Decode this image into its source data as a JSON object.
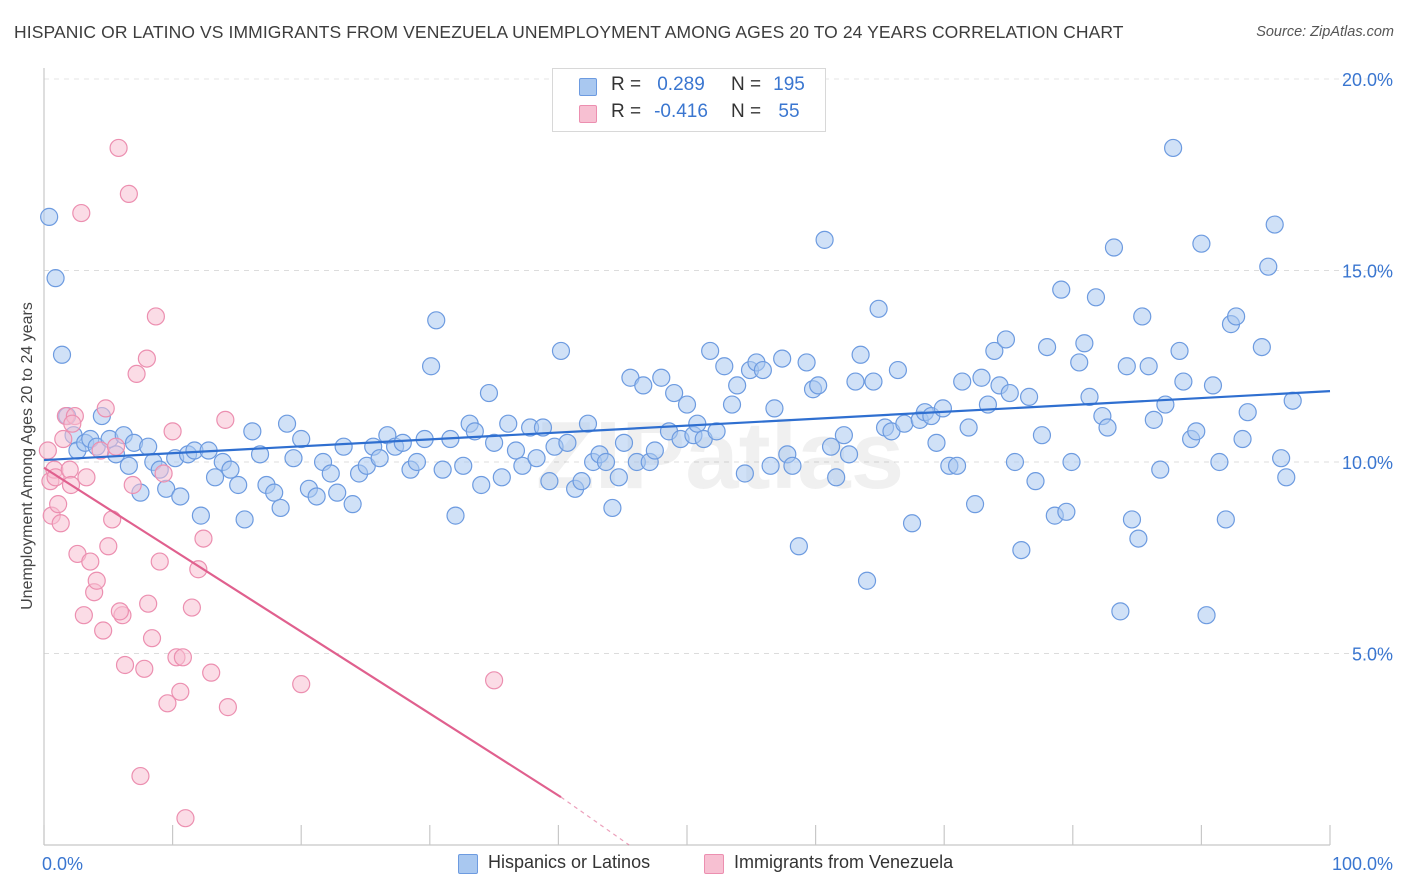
{
  "title": "HISPANIC OR LATINO VS IMMIGRANTS FROM VENEZUELA UNEMPLOYMENT AMONG AGES 20 TO 24 YEARS CORRELATION CHART",
  "source": "Source: ZipAtlas.com",
  "watermark": "ZIPatlas",
  "legend": {
    "rows": [
      {
        "r_label": "R =",
        "r_value": "0.289",
        "n_label": "N =",
        "n_value": "195",
        "color": "#a9c8f0",
        "edge": "#6d9be0"
      },
      {
        "r_label": "R =",
        "r_value": "-0.416",
        "n_label": "N =",
        "n_value": "55",
        "color": "#f7c0d2",
        "edge": "#ec8fb0"
      }
    ]
  },
  "bottom_legend": [
    {
      "label": "Hispanics or Latinos",
      "color": "#a9c8f0",
      "edge": "#6d9be0"
    },
    {
      "label": "Immigrants from Venezuela",
      "color": "#f7c0d2",
      "edge": "#ec8fb0"
    }
  ],
  "chart_data": {
    "type": "scatter",
    "title": "HISPANIC OR LATINO VS IMMIGRANTS FROM VENEZUELA UNEMPLOYMENT AMONG AGES 20 TO 24 YEARS CORRELATION CHART",
    "xlabel": "",
    "ylabel": "Unemployment Among Ages 20 to 24 years",
    "xlim": [
      0,
      100
    ],
    "ylim": [
      0,
      20
    ],
    "x_tick_labels": [
      "0.0%",
      "100.0%"
    ],
    "y_ticks": [
      5,
      10,
      15,
      20
    ],
    "y_tick_labels": [
      "5.0%",
      "10.0%",
      "15.0%",
      "20.0%"
    ],
    "grid": "horizontal-dashed",
    "colors": {
      "blue_line": "#2f6fd0",
      "pink_line": "#e0608e",
      "tick_label": "#3a76d0"
    },
    "series": [
      {
        "name": "Hispanics or Latinos",
        "fill": "#a9c8f0",
        "edge": "#6d9be0",
        "trend": {
          "x": [
            0,
            100
          ],
          "y": [
            10.05,
            11.85
          ]
        },
        "points": [
          [
            0.4,
            16.4
          ],
          [
            0.9,
            14.8
          ],
          [
            1.4,
            12.8
          ],
          [
            1.8,
            11.2
          ],
          [
            2.3,
            10.7
          ],
          [
            2.6,
            10.3
          ],
          [
            3.2,
            10.5
          ],
          [
            3.6,
            10.6
          ],
          [
            4.1,
            10.4
          ],
          [
            4.5,
            11.2
          ],
          [
            5.1,
            10.6
          ],
          [
            5.6,
            10.2
          ],
          [
            6.2,
            10.7
          ],
          [
            6.6,
            9.9
          ],
          [
            7.0,
            10.5
          ],
          [
            7.5,
            9.2
          ],
          [
            8.1,
            10.4
          ],
          [
            8.5,
            10.0
          ],
          [
            9.0,
            9.8
          ],
          [
            9.5,
            9.3
          ],
          [
            10.2,
            10.1
          ],
          [
            10.6,
            9.1
          ],
          [
            11.2,
            10.2
          ],
          [
            11.7,
            10.3
          ],
          [
            12.2,
            8.6
          ],
          [
            12.8,
            10.3
          ],
          [
            13.3,
            9.6
          ],
          [
            13.9,
            10.0
          ],
          [
            14.5,
            9.8
          ],
          [
            15.1,
            9.4
          ],
          [
            15.6,
            8.5
          ],
          [
            16.2,
            10.8
          ],
          [
            16.8,
            10.2
          ],
          [
            17.3,
            9.4
          ],
          [
            17.9,
            9.2
          ],
          [
            18.4,
            8.8
          ],
          [
            18.9,
            11.0
          ],
          [
            19.4,
            10.1
          ],
          [
            20.0,
            10.6
          ],
          [
            20.6,
            9.3
          ],
          [
            21.2,
            9.1
          ],
          [
            21.7,
            10.0
          ],
          [
            22.3,
            9.7
          ],
          [
            22.8,
            9.2
          ],
          [
            23.3,
            10.4
          ],
          [
            24.0,
            8.9
          ],
          [
            24.5,
            9.7
          ],
          [
            25.1,
            9.9
          ],
          [
            25.6,
            10.4
          ],
          [
            26.1,
            10.1
          ],
          [
            26.7,
            10.7
          ],
          [
            27.3,
            10.4
          ],
          [
            27.9,
            10.5
          ],
          [
            28.5,
            9.8
          ],
          [
            29.0,
            10.0
          ],
          [
            29.6,
            10.6
          ],
          [
            30.1,
            12.5
          ],
          [
            30.5,
            13.7
          ],
          [
            31.0,
            9.8
          ],
          [
            31.6,
            10.6
          ],
          [
            32.0,
            8.6
          ],
          [
            32.6,
            9.9
          ],
          [
            33.1,
            11.0
          ],
          [
            33.5,
            10.8
          ],
          [
            34.0,
            9.4
          ],
          [
            34.6,
            11.8
          ],
          [
            35.0,
            10.5
          ],
          [
            35.6,
            9.6
          ],
          [
            36.1,
            11.0
          ],
          [
            36.7,
            10.3
          ],
          [
            37.2,
            9.9
          ],
          [
            37.8,
            10.9
          ],
          [
            38.3,
            10.1
          ],
          [
            38.8,
            10.9
          ],
          [
            39.3,
            9.5
          ],
          [
            39.7,
            10.4
          ],
          [
            40.2,
            12.9
          ],
          [
            40.7,
            10.5
          ],
          [
            41.3,
            9.3
          ],
          [
            41.8,
            9.5
          ],
          [
            42.3,
            11.0
          ],
          [
            42.7,
            10.0
          ],
          [
            43.2,
            10.2
          ],
          [
            43.7,
            10.0
          ],
          [
            44.2,
            8.8
          ],
          [
            44.7,
            9.6
          ],
          [
            45.1,
            10.5
          ],
          [
            45.6,
            12.2
          ],
          [
            46.1,
            10.0
          ],
          [
            46.6,
            12.0
          ],
          [
            47.1,
            10.0
          ],
          [
            47.5,
            10.3
          ],
          [
            48.0,
            12.2
          ],
          [
            48.6,
            10.8
          ],
          [
            49.0,
            11.8
          ],
          [
            49.5,
            10.6
          ],
          [
            50.0,
            11.5
          ],
          [
            50.5,
            10.7
          ],
          [
            50.8,
            11.0
          ],
          [
            51.3,
            10.6
          ],
          [
            51.8,
            12.9
          ],
          [
            52.3,
            10.8
          ],
          [
            52.9,
            12.5
          ],
          [
            53.5,
            11.5
          ],
          [
            53.9,
            12.0
          ],
          [
            54.5,
            9.7
          ],
          [
            54.9,
            12.4
          ],
          [
            55.4,
            12.6
          ],
          [
            55.9,
            12.4
          ],
          [
            56.5,
            9.9
          ],
          [
            56.8,
            11.4
          ],
          [
            57.4,
            12.7
          ],
          [
            57.8,
            10.2
          ],
          [
            58.2,
            9.9
          ],
          [
            58.7,
            7.8
          ],
          [
            59.3,
            12.6
          ],
          [
            59.8,
            11.9
          ],
          [
            60.2,
            12.0
          ],
          [
            60.7,
            15.8
          ],
          [
            61.2,
            10.4
          ],
          [
            61.6,
            9.6
          ],
          [
            62.2,
            10.7
          ],
          [
            62.6,
            10.2
          ],
          [
            63.1,
            12.1
          ],
          [
            63.5,
            12.8
          ],
          [
            64.0,
            6.9
          ],
          [
            64.5,
            12.1
          ],
          [
            64.9,
            14.0
          ],
          [
            65.4,
            10.9
          ],
          [
            65.9,
            10.8
          ],
          [
            66.4,
            12.4
          ],
          [
            66.9,
            11.0
          ],
          [
            67.5,
            8.4
          ],
          [
            68.1,
            11.1
          ],
          [
            68.5,
            11.3
          ],
          [
            69.0,
            11.2
          ],
          [
            69.4,
            10.5
          ],
          [
            69.9,
            11.4
          ],
          [
            70.4,
            9.9
          ],
          [
            71.0,
            9.9
          ],
          [
            71.4,
            12.1
          ],
          [
            71.9,
            10.9
          ],
          [
            72.4,
            8.9
          ],
          [
            72.9,
            12.2
          ],
          [
            73.4,
            11.5
          ],
          [
            73.9,
            12.9
          ],
          [
            74.3,
            12.0
          ],
          [
            74.8,
            13.2
          ],
          [
            75.1,
            11.8
          ],
          [
            75.5,
            10.0
          ],
          [
            76.0,
            7.7
          ],
          [
            76.6,
            11.7
          ],
          [
            77.1,
            9.5
          ],
          [
            77.6,
            10.7
          ],
          [
            78.0,
            13.0
          ],
          [
            78.6,
            8.6
          ],
          [
            79.1,
            14.5
          ],
          [
            79.5,
            8.7
          ],
          [
            79.9,
            10.0
          ],
          [
            80.5,
            12.6
          ],
          [
            80.9,
            13.1
          ],
          [
            81.3,
            11.7
          ],
          [
            81.8,
            14.3
          ],
          [
            82.3,
            11.2
          ],
          [
            82.7,
            10.9
          ],
          [
            83.2,
            15.6
          ],
          [
            83.7,
            6.1
          ],
          [
            84.2,
            12.5
          ],
          [
            84.6,
            8.5
          ],
          [
            85.1,
            8.0
          ],
          [
            85.4,
            13.8
          ],
          [
            85.9,
            12.5
          ],
          [
            86.3,
            11.1
          ],
          [
            86.8,
            9.8
          ],
          [
            87.2,
            11.5
          ],
          [
            87.8,
            18.2
          ],
          [
            88.3,
            12.9
          ],
          [
            88.6,
            12.1
          ],
          [
            89.2,
            10.6
          ],
          [
            89.6,
            10.8
          ],
          [
            90.0,
            15.7
          ],
          [
            90.4,
            6.0
          ],
          [
            90.9,
            12.0
          ],
          [
            91.4,
            10.0
          ],
          [
            91.9,
            8.5
          ],
          [
            92.3,
            13.6
          ],
          [
            92.7,
            13.8
          ],
          [
            93.2,
            10.6
          ],
          [
            93.6,
            11.3
          ],
          [
            94.7,
            13.0
          ],
          [
            95.2,
            15.1
          ],
          [
            95.7,
            16.2
          ],
          [
            96.2,
            10.1
          ],
          [
            96.6,
            9.6
          ],
          [
            97.1,
            11.6
          ]
        ]
      },
      {
        "name": "Immigrants from Venezuela",
        "fill": "#f7c0d2",
        "edge": "#ec8fb0",
        "trend": {
          "x": [
            0,
            40.2
          ],
          "y": [
            9.85,
            1.25
          ]
        },
        "trend_dashed": {
          "x": [
            40.2,
            45.5
          ],
          "y": [
            1.25,
            0.0
          ]
        },
        "points": [
          [
            0.3,
            10.3
          ],
          [
            0.5,
            9.5
          ],
          [
            0.6,
            8.6
          ],
          [
            0.8,
            9.8
          ],
          [
            0.9,
            9.6
          ],
          [
            1.1,
            8.9
          ],
          [
            1.3,
            8.4
          ],
          [
            1.5,
            10.6
          ],
          [
            1.7,
            11.2
          ],
          [
            2.0,
            9.8
          ],
          [
            2.1,
            9.4
          ],
          [
            2.4,
            11.2
          ],
          [
            2.6,
            7.6
          ],
          [
            2.9,
            16.5
          ],
          [
            3.1,
            6.0
          ],
          [
            3.3,
            9.6
          ],
          [
            3.6,
            7.4
          ],
          [
            3.9,
            6.6
          ],
          [
            4.1,
            6.9
          ],
          [
            4.4,
            10.3
          ],
          [
            4.6,
            5.6
          ],
          [
            4.8,
            11.4
          ],
          [
            5.0,
            7.8
          ],
          [
            5.3,
            8.5
          ],
          [
            5.6,
            10.4
          ],
          [
            5.8,
            18.2
          ],
          [
            6.1,
            6.0
          ],
          [
            6.3,
            4.7
          ],
          [
            6.6,
            17.0
          ],
          [
            6.9,
            9.4
          ],
          [
            7.2,
            12.3
          ],
          [
            7.5,
            1.8
          ],
          [
            7.8,
            4.6
          ],
          [
            8.1,
            6.3
          ],
          [
            8.4,
            5.4
          ],
          [
            8.7,
            13.8
          ],
          [
            9.0,
            7.4
          ],
          [
            9.3,
            9.7
          ],
          [
            9.6,
            3.7
          ],
          [
            10.0,
            10.8
          ],
          [
            10.3,
            4.9
          ],
          [
            10.6,
            4.0
          ],
          [
            10.8,
            4.9
          ],
          [
            11.0,
            0.7
          ],
          [
            11.5,
            6.2
          ],
          [
            12.0,
            7.2
          ],
          [
            12.4,
            8.0
          ],
          [
            13.0,
            4.5
          ],
          [
            14.1,
            11.1
          ],
          [
            14.3,
            3.6
          ],
          [
            8.0,
            12.7
          ],
          [
            5.9,
            6.1
          ],
          [
            2.2,
            11.0
          ],
          [
            20.0,
            4.2
          ],
          [
            35.0,
            4.3
          ]
        ]
      }
    ]
  }
}
